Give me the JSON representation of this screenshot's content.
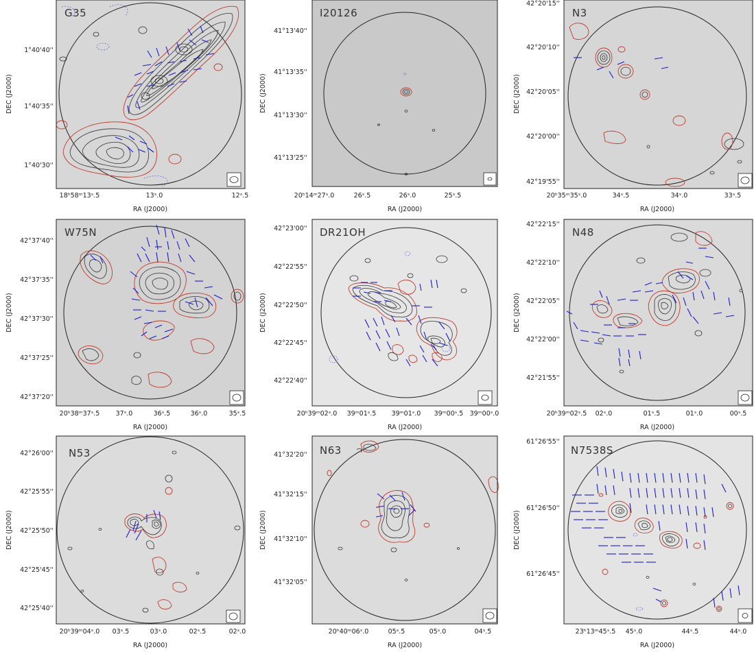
{
  "figure": {
    "panels": [
      {
        "name": "G35",
        "yticks": [
          "1°40'40''",
          "1°40'35''",
          "1°40'30''"
        ],
        "xticks": [
          "18ʰ58ᵐ13ˢ.5",
          "13ˢ.0",
          "12ˢ.5"
        ],
        "ylabel": "DEC (J2000)",
        "xlabel": "RA (J2000)"
      },
      {
        "name": "I20126",
        "yticks": [
          "41°13'40''",
          "41°13'35''",
          "41°13'30''",
          "41°13'25''"
        ],
        "xticks": [
          "20ʰ14ᵐ27ˢ.0",
          "26ˢ.5",
          "26ˢ.0",
          "25ˢ.5"
        ],
        "ylabel": "DEC (J2000)",
        "xlabel": "RA (J2000)"
      },
      {
        "name": "N3",
        "yticks": [
          "42°20'15''",
          "42°20'10''",
          "42°20'05''",
          "42°20'00''",
          "42°19'55''"
        ],
        "xticks": [
          "20ʰ35ᵐ35ˢ.0",
          "34ˢ.5",
          "34ˢ.0",
          "33ˢ.5"
        ],
        "ylabel": "DEC (J2000)",
        "xlabel": "RA (J2000)"
      },
      {
        "name": "W75N",
        "yticks": [
          "42°37'40''",
          "42°37'35''",
          "42°37'30''",
          "42°37'25''",
          "42°37'20''"
        ],
        "xticks": [
          "20ʰ38ᵐ37ˢ.5",
          "37ˢ.0",
          "36ˢ.5",
          "36ˢ.0",
          "35ˢ.5"
        ],
        "ylabel": "DEC (J2000)",
        "xlabel": "RA (J2000)"
      },
      {
        "name": "DR21OH",
        "yticks": [
          "42°23'00''",
          "42°22'55''",
          "42°22'50''",
          "42°22'45''",
          "42°22'40''"
        ],
        "xticks": [
          "20ʰ39ᵐ02ˢ.0",
          "39ᵐ01ˢ.5",
          "39ᵐ01ˢ.0",
          "39ᵐ00ˢ.5",
          "39ᵐ00ˢ.0"
        ],
        "ylabel": "DEC (J2000)",
        "xlabel": "RA (J2000)"
      },
      {
        "name": "N48",
        "yticks": [
          "42°22'15''",
          "42°22'10''",
          "42°22'05''",
          "42°22'00''",
          "42°21'55''"
        ],
        "xticks": [
          "20ʰ39ᵐ02ˢ.5",
          "02ˢ.0",
          "01ˢ.5",
          "01ˢ.0",
          "00ˢ.5"
        ],
        "ylabel": "DEC (J2000)",
        "xlabel": "RA (J2000)"
      },
      {
        "name": "N53",
        "yticks": [
          "42°26'00''",
          "42°25'55''",
          "42°25'50''",
          "42°25'45''",
          "42°25'40''"
        ],
        "xticks": [
          "20ʰ39ᵐ04ˢ.0",
          "03ˢ.5",
          "03ˢ.0",
          "02ˢ.5",
          "02ˢ.0"
        ],
        "ylabel": "DEC (J2000)",
        "xlabel": "RA (J2000)"
      },
      {
        "name": "N63",
        "yticks": [
          "41°32'20''",
          "41°32'15''",
          "41°32'10''",
          "41°32'05''"
        ],
        "xticks": [
          "20ʰ40ᵐ06ˢ.0",
          "05ˢ.5",
          "05ˢ.0",
          "04ˢ.5"
        ],
        "ylabel": "DEC (J2000)",
        "xlabel": "RA (J2000)"
      },
      {
        "name": "N7538S",
        "yticks": [
          "61°26'55''",
          "61°26'50''",
          "61°26'45''"
        ],
        "xticks": [
          "23ʰ13ᵐ45ˢ.5",
          "45ˢ.0",
          "44ˢ.5",
          "44ˢ.0"
        ],
        "ylabel": "DEC (J2000)",
        "xlabel": "RA (J2000)"
      }
    ]
  },
  "colors": {
    "frame": "#222222",
    "background_gray": "#d9d9d9",
    "black_contour": "#333333",
    "red_contour": "#c0392b",
    "negative_contour": "#6a6ad8",
    "vector": "#1a1ad6"
  }
}
